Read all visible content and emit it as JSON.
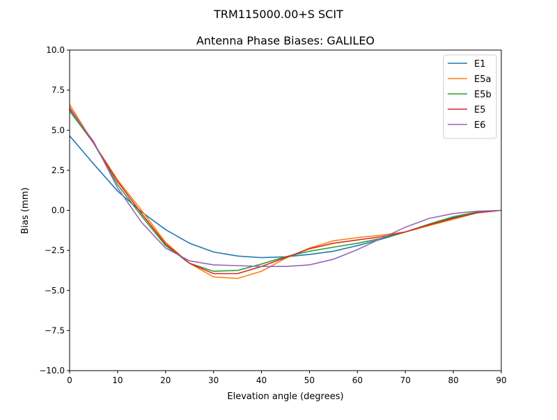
{
  "chart_data": {
    "type": "line",
    "suptitle": "TRM115000.00+S  SCIT",
    "title": "Antenna Phase Biases: GALILEO",
    "xlabel": "Elevation angle (degrees)",
    "ylabel": "Bias (mm)",
    "xlim": [
      0,
      90
    ],
    "ylim": [
      -10,
      10
    ],
    "xticks": [
      0,
      10,
      20,
      30,
      40,
      50,
      60,
      70,
      80,
      90
    ],
    "yticks": [
      -10.0,
      -7.5,
      -5.0,
      -2.5,
      0.0,
      2.5,
      5.0,
      7.5,
      10.0
    ],
    "ytick_labels": [
      "−10.0",
      "−7.5",
      "−5.0",
      "−2.5",
      "0.0",
      "2.5",
      "5.0",
      "7.5",
      "10.0"
    ],
    "grid": false,
    "legend_position": "top-right",
    "x": [
      0,
      5,
      10,
      15,
      20,
      25,
      30,
      35,
      40,
      45,
      50,
      55,
      60,
      65,
      70,
      75,
      80,
      85,
      90
    ],
    "series": [
      {
        "name": "E1",
        "color": "#1f77b4",
        "values": [
          4.65,
          2.9,
          1.2,
          -0.1,
          -1.2,
          -2.05,
          -2.6,
          -2.85,
          -2.95,
          -2.9,
          -2.75,
          -2.55,
          -2.2,
          -1.8,
          -1.35,
          -0.9,
          -0.45,
          -0.15,
          0.0
        ]
      },
      {
        "name": "E5a",
        "color": "#ff7f0e",
        "values": [
          6.6,
          4.2,
          1.9,
          0.0,
          -2.0,
          -3.3,
          -4.15,
          -4.25,
          -3.8,
          -3.0,
          -2.35,
          -1.9,
          -1.7,
          -1.55,
          -1.35,
          -0.95,
          -0.55,
          -0.15,
          0.0
        ]
      },
      {
        "name": "E5b",
        "color": "#2ca02c",
        "values": [
          6.2,
          4.2,
          1.6,
          -0.35,
          -2.2,
          -3.3,
          -3.8,
          -3.75,
          -3.35,
          -2.9,
          -2.55,
          -2.3,
          -2.05,
          -1.75,
          -1.35,
          -0.85,
          -0.4,
          -0.1,
          0.0
        ]
      },
      {
        "name": "E5",
        "color": "#d62728",
        "values": [
          6.4,
          4.2,
          1.8,
          -0.2,
          -2.1,
          -3.3,
          -3.95,
          -3.95,
          -3.5,
          -2.95,
          -2.4,
          -2.05,
          -1.85,
          -1.65,
          -1.35,
          -0.9,
          -0.5,
          -0.15,
          0.0
        ]
      },
      {
        "name": "E6",
        "color": "#9467bd",
        "values": [
          6.3,
          4.3,
          1.4,
          -0.75,
          -2.35,
          -3.15,
          -3.4,
          -3.45,
          -3.5,
          -3.5,
          -3.4,
          -3.05,
          -2.45,
          -1.75,
          -1.05,
          -0.5,
          -0.2,
          -0.05,
          0.0
        ]
      }
    ]
  }
}
